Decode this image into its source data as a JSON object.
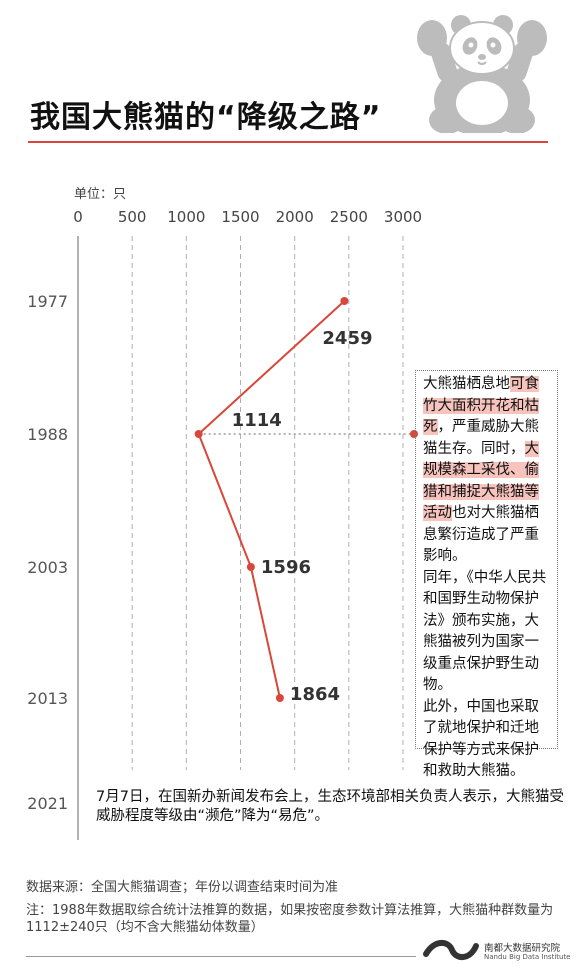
{
  "title": "我国大熊猫的“降级之路”",
  "unit_label": "单位：只",
  "chart_data": {
    "type": "line",
    "x_axis_ticks": [
      0,
      500,
      1000,
      1500,
      2000,
      2500,
      3000
    ],
    "xlim": [
      0,
      3000
    ],
    "grid": "dashed vertical",
    "year_labels": [
      "1977",
      "1988",
      "2003",
      "2013",
      "2021"
    ],
    "points": [
      {
        "year": "1977",
        "value": 2459
      },
      {
        "year": "1988",
        "value": 1114
      },
      {
        "year": "2003",
        "value": 1596
      },
      {
        "year": "2013",
        "value": 1864
      }
    ],
    "value_labels": [
      "2459",
      "1114",
      "1596",
      "1864"
    ],
    "line_color": "#d9473a"
  },
  "note_1988": {
    "segments": [
      {
        "text": "大熊猫栖息地",
        "highlight": false
      },
      {
        "text": "可食竹大面积开花和枯死",
        "highlight": true
      },
      {
        "text": "，严重威胁大熊猫生存。同时，",
        "highlight": false
      },
      {
        "text": "大规模森工采伐、偷猎和捕捉大熊猫等活动",
        "highlight": true
      },
      {
        "text": "也对大熊猫栖息繁衍造成了严重影响。",
        "highlight": false
      }
    ],
    "para2": "同年，《中华人民共和国野生动物保护法》颁布实施，大熊猫被列为国家一级重点保护野生动物。",
    "para3": "此外，中国也采取了就地保护和迁地保护等方式来保护和救助大熊猫。"
  },
  "note_2021": "7月7日，在国新办新闻发布会上，生态环境部相关负责人表示，大熊猫受威胁程度等级由“濒危”降为“易危”。",
  "source": "数据来源：全国大熊猫调查；年份以调查结束时间为准",
  "footnote": "注：1988年数据取综合统计法推算的数据，如果按密度参数计算法推算，大熊猫种群数量为1112±240只（均不含大熊猫幼体数量）",
  "logo": {
    "name_cn": "南都大数据研究院",
    "name_en": "Nandu Big Data Institute"
  },
  "colors": {
    "accent": "#d9473a",
    "highlight": "#f6c3bd",
    "grid": "#b0b0b0",
    "panda_gray": "#bcbcbc"
  }
}
